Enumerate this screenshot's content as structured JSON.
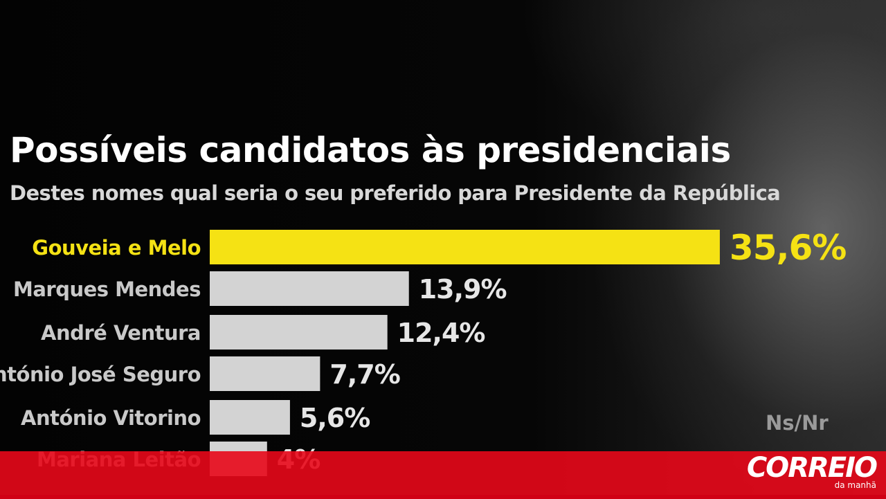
{
  "chart_data": {
    "type": "bar",
    "orientation": "horizontal",
    "title": "Possíveis candidatos às presidenciais",
    "subtitle": "Destes nomes qual seria o seu preferido para Presidente da República",
    "categories": [
      "Gouveia e Melo",
      "Marques Mendes",
      "André Ventura",
      "António José Seguro",
      "António Vitorino",
      "Mariana Leitão"
    ],
    "values": [
      35.6,
      13.9,
      12.4,
      7.7,
      5.6,
      4
    ],
    "value_labels": [
      "35,6%",
      "13,9%",
      "12,4%",
      "7,7%",
      "5,6%",
      "4%"
    ],
    "highlight_index": 0,
    "highlight_color": "#f5e214",
    "bar_color": "#d3d3d3",
    "extra_label": "Ns/Nr",
    "grid": false
  },
  "brand": {
    "logo_text": "CORREIO",
    "logo_sub": "da manhã",
    "bar_color": "#e80819"
  }
}
